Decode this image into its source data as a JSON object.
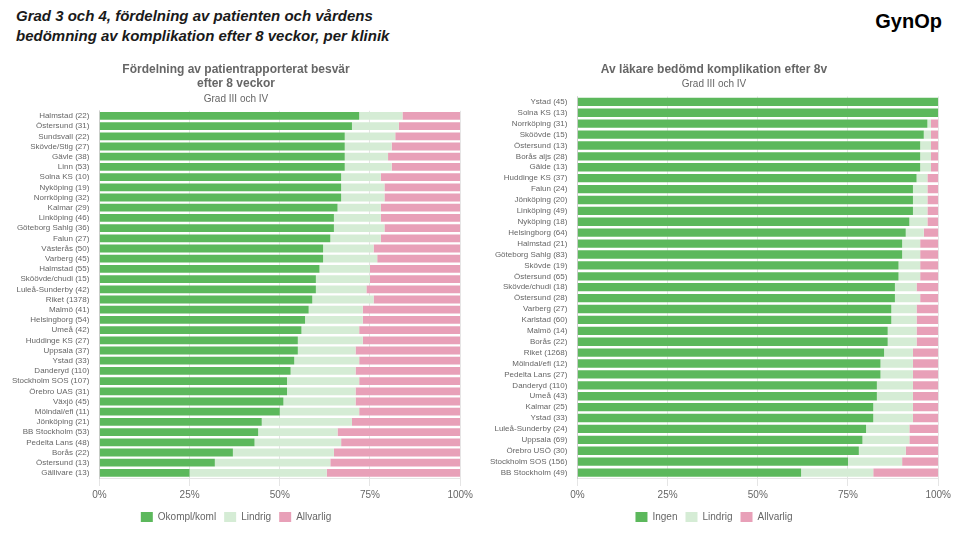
{
  "title": "Grad 3 och 4, fördelning av patienten och vårdens\nbedömning av komplikation efter 8 veckor, per klinik",
  "annotations": [
    "Gyn",
    "Op"
  ],
  "chart_data": [
    {
      "type": "bar",
      "orientation": "horizontal",
      "stacked": true,
      "title": "Fördelning av patientrapporterat besvär\nefter 8 veckor",
      "subtitle": "Grad III och IV",
      "categories": [
        "Halmstad (22)",
        "Östersund (31)",
        "Sundsvall (22)",
        "Skövde/Stig (27)",
        "Gävle (38)",
        "Linn (53)",
        "Solna KS (10)",
        "Nyköping (19)",
        "Norrköping (32)",
        "Kalmar (29)",
        "Linköping (46)",
        "Göteborg Sahlg (36)",
        "Falun (27)",
        "Västerås (50)",
        "Varberg (45)",
        "Halmstad (55)",
        "Sköövde/chudi (15)",
        "Luleå-Sunderby (42)",
        "Riket (1378)",
        "Malmö (41)",
        "Helsingborg (54)",
        "Umeå (42)",
        "Huddinge KS (27)",
        "Uppsala (37)",
        "Ystad (33)",
        "Danderyd (110)",
        "Stockholm SOS (107)",
        "Örebro UAS (31)",
        "Växjö (45)",
        "Mölndal/efi (11)",
        "Jönköping (21)",
        "BB Stockholm (53)",
        "Pedelta Lans (48)",
        "Borås (22)",
        "Östersund (13)",
        "Gällivare (13)"
      ],
      "series": [
        {
          "name": "Okompl/koml",
          "color": "#5cb85c",
          "values": [
            72,
            70,
            68,
            68,
            68,
            68,
            67,
            67,
            67,
            66,
            65,
            65,
            64,
            62,
            62,
            61,
            60,
            60,
            59,
            58,
            57,
            56,
            55,
            55,
            54,
            53,
            52,
            52,
            51,
            50,
            45,
            44,
            43,
            37,
            32,
            25
          ]
        },
        {
          "name": "Lindrig",
          "color": "#d5ecd5",
          "values": [
            12,
            13,
            14,
            13,
            12,
            13,
            11,
            12,
            12,
            12,
            13,
            14,
            14,
            14,
            15,
            14,
            15,
            14,
            17,
            15,
            16,
            16,
            18,
            16,
            18,
            18,
            20,
            19,
            20,
            22,
            25,
            22,
            24,
            28,
            32,
            38
          ]
        },
        {
          "name": "Allvarlig",
          "color": "#e8a0b8",
          "values": [
            16,
            17,
            18,
            19,
            20,
            19,
            22,
            21,
            21,
            22,
            22,
            21,
            22,
            24,
            23,
            25,
            25,
            26,
            24,
            27,
            27,
            28,
            27,
            29,
            28,
            29,
            28,
            29,
            29,
            28,
            30,
            34,
            33,
            35,
            36,
            37
          ]
        }
      ],
      "xlim": [
        0,
        100
      ],
      "xticks": [
        {
          "value": 0,
          "label": "0%"
        },
        {
          "value": 25,
          "label": "25%"
        },
        {
          "value": 50,
          "label": "50%"
        },
        {
          "value": 75,
          "label": "75%"
        },
        {
          "value": 100,
          "label": "100%"
        }
      ],
      "grid": true,
      "legend": "bottom"
    },
    {
      "type": "bar",
      "orientation": "horizontal",
      "stacked": true,
      "title": "Av läkare bedömd komplikation efter 8v",
      "subtitle": "Grad III och IV",
      "categories": [
        "Ystad (45)",
        "Solna KS (13)",
        "Norrköping (31)",
        "Sköövde (15)",
        "Östersund (13)",
        "Borås aljs (28)",
        "Gälde (13)",
        "Huddinge KS (37)",
        "Falun (24)",
        "Jönköping (20)",
        "Linköping (49)",
        "Nyköping (18)",
        "Helsingborg (64)",
        "Halmstad (21)",
        "Göteborg Sahlg (83)",
        "Skövde (19)",
        "Östersund (65)",
        "Skövde/chudi (18)",
        "Östersund (28)",
        "Varberg (27)",
        "Karlstad (60)",
        "Malmö (14)",
        "Borås (22)",
        "Riket (1268)",
        "Mölndal/efi (12)",
        "Pedelta Lans (27)",
        "Danderyd (110)",
        "Umeå (43)",
        "Kalmar (25)",
        "Ystad (33)",
        "Luleå-Sunderby (24)",
        "Uppsala (69)",
        "Örebro USÖ (30)",
        "Stockholm SOS (156)",
        "BB Stockholm (49)"
      ],
      "series": [
        {
          "name": "Ingen",
          "color": "#5cb85c",
          "values": [
            100,
            100,
            97,
            96,
            95,
            95,
            95,
            94,
            93,
            93,
            93,
            92,
            91,
            90,
            90,
            89,
            89,
            88,
            88,
            87,
            87,
            86,
            86,
            85,
            84,
            84,
            83,
            83,
            82,
            82,
            80,
            79,
            78,
            75,
            62
          ]
        },
        {
          "name": "Lindrig",
          "color": "#d5ecd5",
          "values": [
            0,
            0,
            1,
            2,
            3,
            3,
            3,
            3,
            4,
            4,
            4,
            5,
            5,
            5,
            5,
            6,
            6,
            6,
            7,
            7,
            7,
            8,
            8,
            8,
            9,
            9,
            10,
            10,
            11,
            11,
            12,
            13,
            13,
            15,
            20
          ]
        },
        {
          "name": "Allvarlig",
          "color": "#e8a0b8",
          "values": [
            0,
            0,
            2,
            2,
            2,
            2,
            2,
            3,
            3,
            3,
            3,
            3,
            4,
            5,
            5,
            5,
            5,
            6,
            5,
            6,
            6,
            6,
            6,
            7,
            7,
            7,
            7,
            7,
            7,
            7,
            8,
            8,
            9,
            10,
            18
          ]
        }
      ],
      "xlim": [
        0,
        100
      ],
      "xticks": [
        {
          "value": 0,
          "label": "0%"
        },
        {
          "value": 25,
          "label": "25%"
        },
        {
          "value": 50,
          "label": "50%"
        },
        {
          "value": 75,
          "label": "75%"
        },
        {
          "value": 100,
          "label": "100%"
        }
      ],
      "grid": true,
      "legend": "bottom"
    }
  ]
}
